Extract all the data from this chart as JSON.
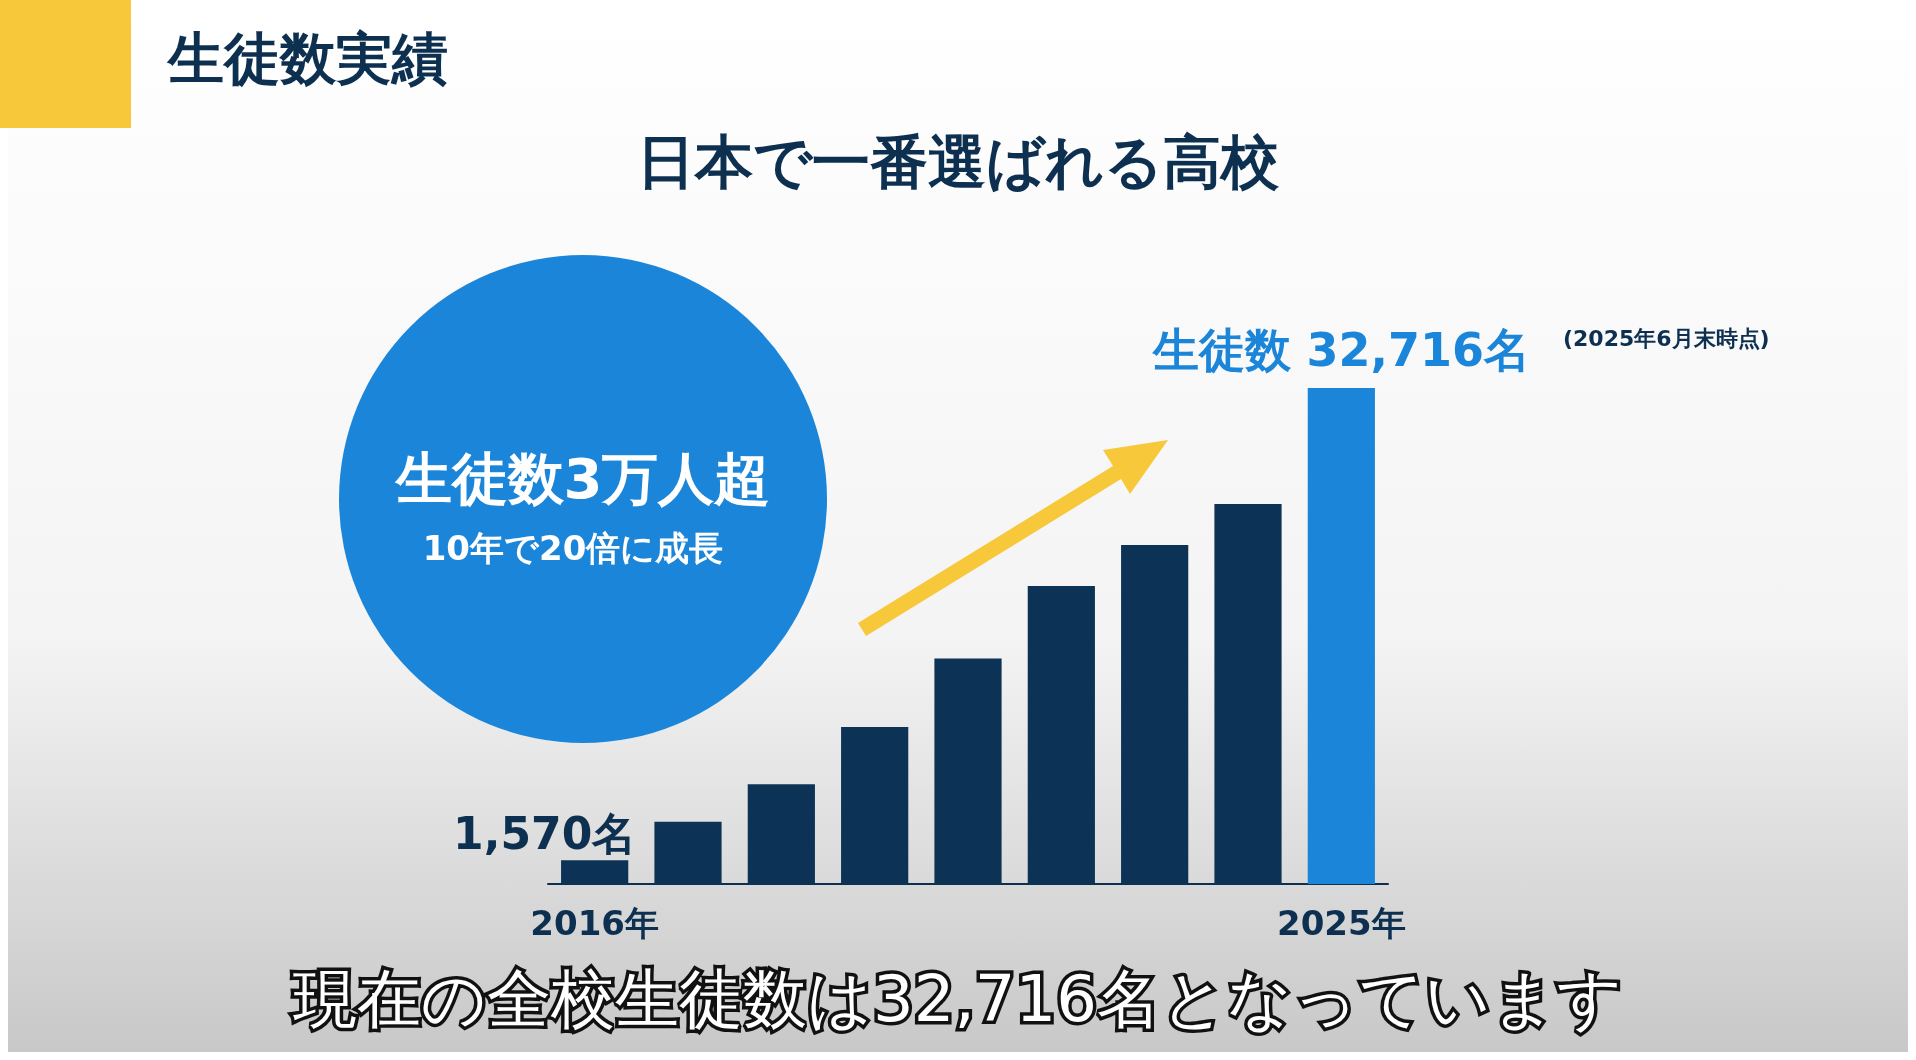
{
  "chart_data": {
    "type": "bar",
    "title": "生徒数実績",
    "subtitle": "日本で一番選ばれる高校",
    "categories": [
      "2016年",
      null,
      null,
      null,
      null,
      null,
      null,
      null,
      "2025年"
    ],
    "values": [
      1570,
      4110,
      6580,
      10360,
      14880,
      19650,
      22360,
      25070,
      32716
    ],
    "colors": [
      "#0c3256",
      "#0c3256",
      "#0c3256",
      "#0c3256",
      "#0c3256",
      "#0c3256",
      "#0c3256",
      "#0c3256",
      "#1b86d9"
    ],
    "value_labels": [
      "1,570名",
      null,
      null,
      null,
      null,
      null,
      null,
      null,
      "生徒数 32,716名"
    ],
    "annotations": [
      "生徒数3万人超",
      "10年で20倍に成長",
      "(2025年6月末時点)",
      "現在の全校生徒数は32,716名となっています"
    ],
    "grid": false
  }
}
